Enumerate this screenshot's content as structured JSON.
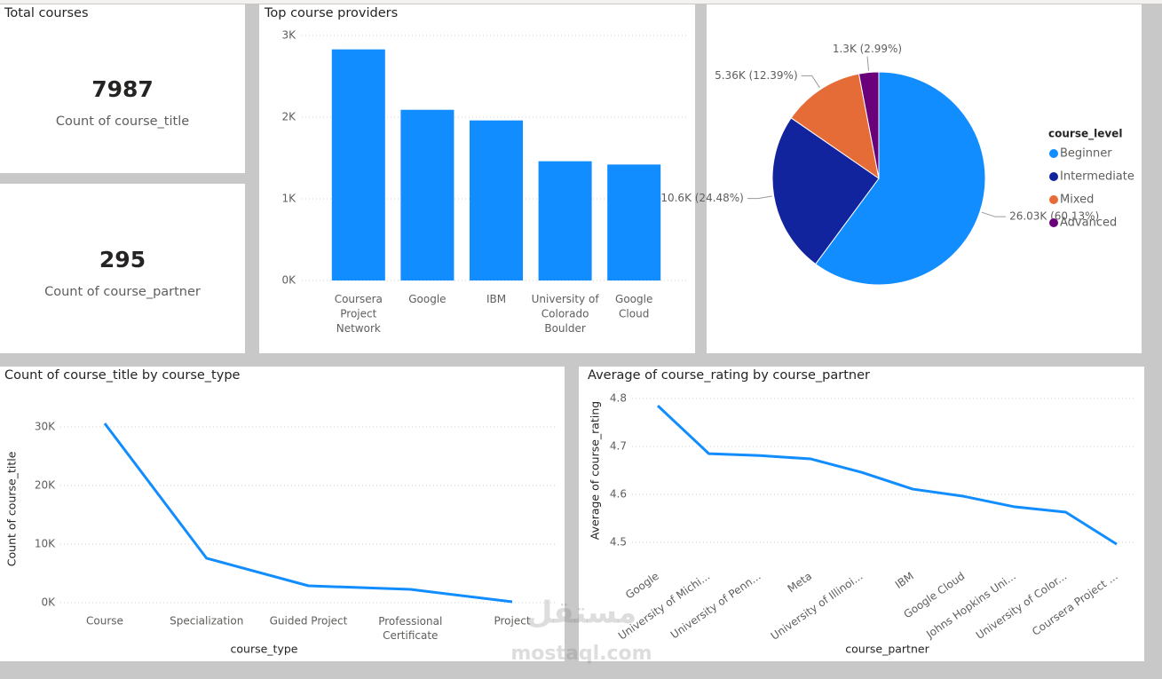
{
  "cards": [
    {
      "title": "Total courses",
      "value": 7987,
      "label": "Count of course_title"
    },
    {
      "value": 295,
      "label": "Count of course_partner"
    }
  ],
  "watermark": {
    "arabic": "مستقل",
    "latin": "mostaql.com"
  },
  "chart_data": [
    {
      "type": "bar",
      "title": "Top course providers",
      "categories": [
        "Coursera Project Network",
        "Google",
        "IBM",
        "University of Colorado Boulder",
        "Google Cloud"
      ],
      "values": [
        2830,
        2090,
        1960,
        1460,
        1420
      ],
      "color": "#118DFF",
      "ylim": [
        0,
        3000
      ],
      "yticks": [
        {
          "value": 0,
          "label": "0K"
        },
        {
          "value": 1000,
          "label": "1K"
        },
        {
          "value": 2000,
          "label": "2K"
        },
        {
          "value": 3000,
          "label": "3K"
        }
      ],
      "grid": true
    },
    {
      "type": "pie",
      "legend_title": "course_level",
      "categories": [
        "Beginner",
        "Intermediate",
        "Mixed",
        "Advanced"
      ],
      "values": [
        26030,
        10600,
        5360,
        1300
      ],
      "value_labels": [
        "26.03K (60.13%)",
        "10.6K (24.48%)",
        "5.36K (12.39%)",
        "1.3K (2.99%)"
      ],
      "colors": [
        "#118DFF",
        "#12239E",
        "#E66C37",
        "#6B007B"
      ],
      "legend": "right"
    },
    {
      "type": "line",
      "title": "Count of course_title by course_type",
      "x_label": "course_type",
      "y_label": "Count of course_title",
      "categories": [
        "Course",
        "Specialization",
        "Guided Project",
        "Professional Certificate",
        "Project"
      ],
      "values": [
        30600,
        7580,
        2880,
        2270,
        150
      ],
      "color": "#118DFF",
      "ylim": [
        0,
        32000
      ],
      "yticks": [
        {
          "value": 0,
          "label": "0K"
        },
        {
          "value": 10000,
          "label": "10K"
        },
        {
          "value": 20000,
          "label": "20K"
        },
        {
          "value": 30000,
          "label": "30K"
        }
      ],
      "grid": true
    },
    {
      "type": "line",
      "title": "Average of course_rating by course_partner",
      "x_label": "course_partner",
      "y_label": "Average of course_rating",
      "categories": [
        "Google",
        "University of Michi...",
        "University of Penn...",
        "Meta",
        "University of Illinoi...",
        "IBM",
        "Google Cloud",
        "Johns Hopkins Uni...",
        "University of Color...",
        "Coursera Project ..."
      ],
      "values": [
        4.785,
        4.685,
        4.681,
        4.674,
        4.646,
        4.611,
        4.596,
        4.574,
        4.563,
        4.496
      ],
      "color": "#118DFF",
      "ylim": [
        4.49,
        4.81
      ],
      "yticks": [
        4.5,
        4.6,
        4.7,
        4.8
      ],
      "grid": true,
      "rotate_x_labels": true
    }
  ]
}
